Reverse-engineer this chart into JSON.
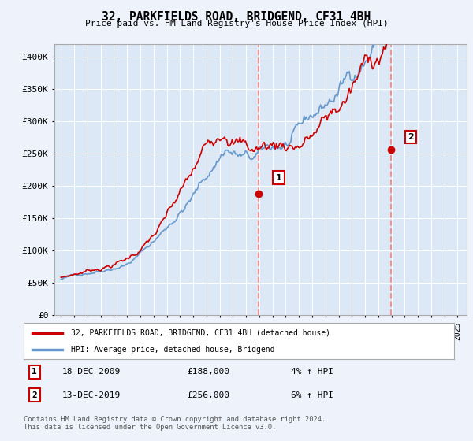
{
  "title": "32, PARKFIELDS ROAD, BRIDGEND, CF31 4BH",
  "subtitle": "Price paid vs. HM Land Registry's House Price Index (HPI)",
  "background_color": "#eef2fa",
  "plot_bg_color": "#dce8f5",
  "ylim": [
    0,
    420000
  ],
  "yticks": [
    0,
    50000,
    100000,
    150000,
    200000,
    250000,
    300000,
    350000,
    400000
  ],
  "ytick_labels": [
    "£0",
    "£50K",
    "£100K",
    "£150K",
    "£200K",
    "£250K",
    "£300K",
    "£350K",
    "£400K"
  ],
  "xmin": 1994.5,
  "xmax": 2025.7,
  "marker1_year": 2009.96,
  "marker1_value": 188000,
  "marker2_year": 2019.95,
  "marker2_value": 256000,
  "sale1_label": "1",
  "sale1_date": "18-DEC-2009",
  "sale1_price": "£188,000",
  "sale1_hpi": "4% ↑ HPI",
  "sale2_label": "2",
  "sale2_date": "13-DEC-2019",
  "sale2_price": "£256,000",
  "sale2_hpi": "6% ↑ HPI",
  "legend_line1": "32, PARKFIELDS ROAD, BRIDGEND, CF31 4BH (detached house)",
  "legend_line2": "HPI: Average price, detached house, Bridgend",
  "footer": "Contains HM Land Registry data © Crown copyright and database right 2024.\nThis data is licensed under the Open Government Licence v3.0.",
  "line_color_red": "#cc0000",
  "line_color_blue": "#6699cc",
  "dashed_line_color": "#ff8888"
}
